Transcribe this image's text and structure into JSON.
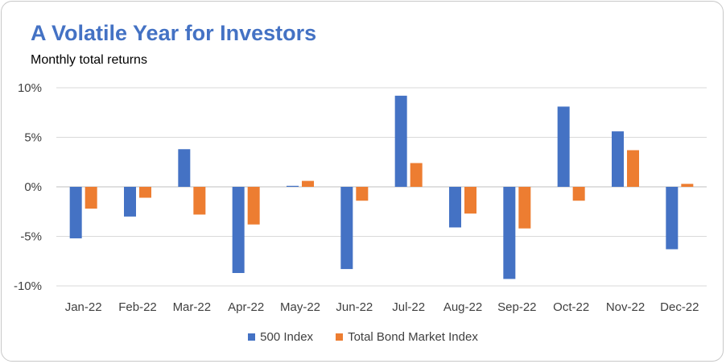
{
  "chart_data": {
    "type": "bar",
    "title": "A Volatile Year for Investors",
    "subtitle": "Monthly total returns",
    "categories": [
      "Jan-22",
      "Feb-22",
      "Mar-22",
      "Apr-22",
      "May-22",
      "Jun-22",
      "Jul-22",
      "Aug-22",
      "Sep-22",
      "Oct-22",
      "Nov-22",
      "Dec-22"
    ],
    "series": [
      {
        "name": "500 Index",
        "color": "#4472c4",
        "values": [
          -5.2,
          -3.0,
          3.8,
          -8.7,
          0.1,
          -8.3,
          9.2,
          -4.1,
          -9.3,
          8.1,
          5.6,
          -6.3
        ]
      },
      {
        "name": "Total Bond Market Index",
        "color": "#ed7d31",
        "values": [
          -2.2,
          -1.1,
          -2.8,
          -3.8,
          0.6,
          -1.4,
          2.4,
          -2.7,
          -4.2,
          -1.4,
          3.7,
          0.3
        ]
      }
    ],
    "y_ticks": [
      10,
      5,
      0,
      -5,
      -10
    ],
    "y_tick_labels": [
      "10%",
      "5%",
      "0%",
      "-5%",
      "-10%"
    ],
    "ylim": [
      -10,
      10
    ],
    "grid": true,
    "legend_position": "bottom",
    "xlabel": "",
    "ylabel": ""
  }
}
